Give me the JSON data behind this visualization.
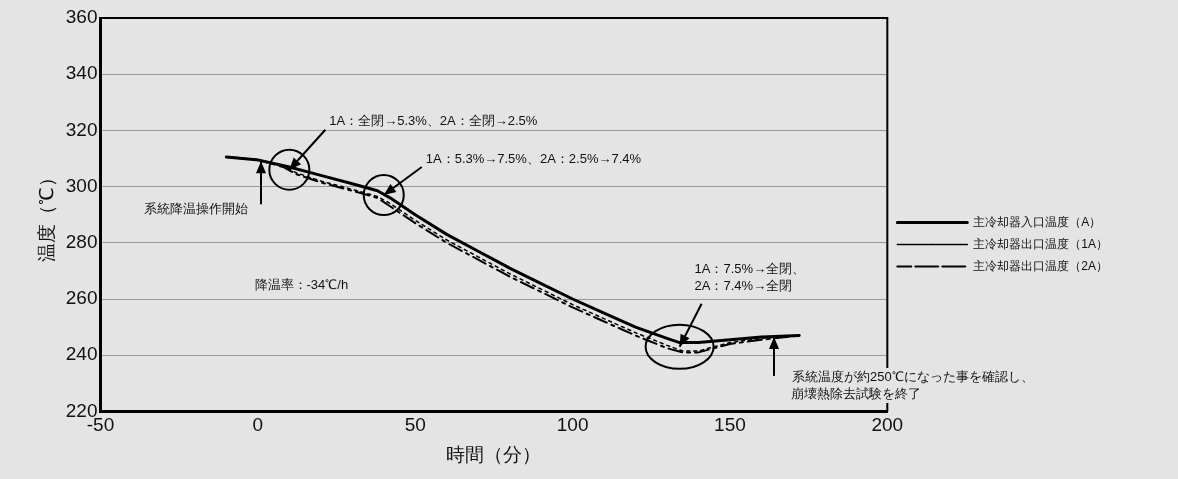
{
  "chart_data": {
    "type": "line",
    "xlabel": "時間（分）",
    "ylabel": "温度（℃）",
    "xlim": [
      -50,
      200
    ],
    "xticks": [
      -50,
      0,
      50,
      100,
      150,
      200
    ],
    "ylim": [
      220,
      360
    ],
    "yticks": [
      220,
      240,
      260,
      280,
      300,
      320,
      340,
      360
    ],
    "grid": "y",
    "legend": "right",
    "marker": "none",
    "series": [
      {
        "name": "主冷却器入口温度（A）",
        "color": "#000000",
        "line_style": "solid",
        "x": [
          -10,
          0,
          10,
          20,
          30,
          38,
          42,
          50,
          60,
          70,
          80,
          90,
          100,
          110,
          120,
          130,
          134,
          140,
          150,
          160,
          172
        ],
        "values": [
          310.5,
          309.5,
          307,
          304,
          301,
          298.5,
          296,
          290,
          283,
          277,
          271,
          265.5,
          260,
          255,
          250,
          246,
          244.5,
          244.5,
          245.5,
          246.5,
          247
        ]
      },
      {
        "name": "主冷却器出口温度（1A）",
        "color": "#000000",
        "line_style": "dotted",
        "x": [
          -10,
          0,
          8,
          12,
          20,
          30,
          38,
          42,
          50,
          60,
          70,
          80,
          90,
          100,
          110,
          120,
          130,
          135,
          140,
          145,
          150,
          160,
          172
        ],
        "values": [
          310.5,
          309.5,
          307.5,
          305,
          302,
          299,
          296.5,
          294,
          288,
          281,
          275,
          269,
          263.5,
          258,
          253,
          248,
          243.5,
          241.5,
          241.5,
          243,
          244.5,
          246,
          247
        ]
      },
      {
        "name": "主冷却器出口温度（2A）",
        "color": "#000000",
        "line_style": "dashed",
        "x": [
          -10,
          0,
          8,
          12,
          20,
          30,
          38,
          42,
          50,
          60,
          70,
          80,
          90,
          100,
          110,
          120,
          130,
          135,
          140,
          145,
          150,
          160,
          172
        ],
        "values": [
          310.5,
          309.5,
          307,
          304.5,
          301.5,
          298.5,
          296,
          293,
          287,
          280,
          274,
          268,
          262.5,
          257,
          252,
          247,
          242.5,
          241,
          241,
          242.5,
          244,
          245.5,
          247
        ]
      }
    ],
    "annotations": [
      {
        "text": "1A：全閉→5.3%、2A：全閉→2.5%",
        "x": 10,
        "y": 306
      },
      {
        "text": "1A：5.3%→7.5%、2A：2.5%→7.4%",
        "x": 40,
        "y": 297
      },
      {
        "text": "系統降温操作開始",
        "x": 1,
        "y": 309
      },
      "降温率：-34℃/h",
      {
        "text": "1A：7.5%→全閉、\n2A：7.4%→全閉",
        "x": 134,
        "y": 243
      },
      {
        "text": "系統温度が約250℃になった事を確認し、",
        "x": 164,
        "y": 246.5
      },
      "崩壊熱除去試験を終了"
    ]
  }
}
